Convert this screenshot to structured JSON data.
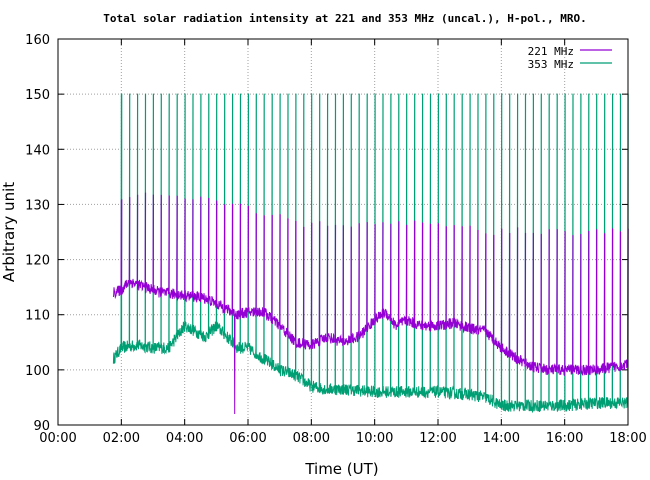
{
  "chart_data": {
    "type": "line",
    "title": "Total solar radiation intensity at 221 and 353 MHz (uncal.), H-pol., MRO.",
    "xlabel": "Time (UT)",
    "ylabel": "Arbitrary unit",
    "xlim": [
      "00:00",
      "18:00"
    ],
    "ylim": [
      90,
      160
    ],
    "x_ticks": [
      "00:00",
      "02:00",
      "04:00",
      "06:00",
      "08:00",
      "10:00",
      "12:00",
      "14:00",
      "16:00",
      "18:00"
    ],
    "y_ticks": [
      "90",
      "100",
      "110",
      "120",
      "130",
      "140",
      "150",
      "160"
    ],
    "grid": true,
    "legend_position": "top-right",
    "series": [
      {
        "name": "221 MHz",
        "color": "#9400d3",
        "baseline": [
          {
            "x": "01:45",
            "y": 114
          },
          {
            "x": "02:00",
            "y": 114.5
          },
          {
            "x": "02:15",
            "y": 116
          },
          {
            "x": "02:45",
            "y": 115
          },
          {
            "x": "03:15",
            "y": 114
          },
          {
            "x": "04:00",
            "y": 113.5
          },
          {
            "x": "04:40",
            "y": 113
          },
          {
            "x": "05:00",
            "y": 112
          },
          {
            "x": "05:20",
            "y": 111
          },
          {
            "x": "05:40",
            "y": 110
          },
          {
            "x": "06:00",
            "y": 110.5
          },
          {
            "x": "06:30",
            "y": 110.5
          },
          {
            "x": "07:00",
            "y": 108
          },
          {
            "x": "07:30",
            "y": 105
          },
          {
            "x": "08:00",
            "y": 104.5
          },
          {
            "x": "08:30",
            "y": 106
          },
          {
            "x": "09:00",
            "y": 105
          },
          {
            "x": "09:30",
            "y": 106
          },
          {
            "x": "10:00",
            "y": 109
          },
          {
            "x": "10:20",
            "y": 110.5
          },
          {
            "x": "10:40",
            "y": 108
          },
          {
            "x": "11:00",
            "y": 109
          },
          {
            "x": "11:30",
            "y": 108
          },
          {
            "x": "12:00",
            "y": 108
          },
          {
            "x": "12:30",
            "y": 108.5
          },
          {
            "x": "13:00",
            "y": 107.5
          },
          {
            "x": "13:30",
            "y": 107
          },
          {
            "x": "14:00",
            "y": 104
          },
          {
            "x": "14:30",
            "y": 102
          },
          {
            "x": "15:00",
            "y": 100.5
          },
          {
            "x": "15:30",
            "y": 100
          },
          {
            "x": "16:00",
            "y": 100
          },
          {
            "x": "17:00",
            "y": 100
          },
          {
            "x": "17:30",
            "y": 100.5
          },
          {
            "x": "18:00",
            "y": 101
          }
        ],
        "spike_peaks": [
          {
            "x": "01:45",
            "y": 131
          },
          {
            "x": "03:00",
            "y": 132
          },
          {
            "x": "05:00",
            "y": 131
          },
          {
            "x": "06:00",
            "y": 129
          },
          {
            "x": "08:00",
            "y": 126
          },
          {
            "x": "10:00",
            "y": 127
          },
          {
            "x": "12:00",
            "y": 126
          },
          {
            "x": "14:00",
            "y": 125
          },
          {
            "x": "16:00",
            "y": 125
          },
          {
            "x": "18:00",
            "y": 125
          }
        ]
      },
      {
        "name": "353 MHz",
        "color": "#009e73",
        "baseline": [
          {
            "x": "01:45",
            "y": 102
          },
          {
            "x": "02:00",
            "y": 104
          },
          {
            "x": "02:30",
            "y": 104.5
          },
          {
            "x": "03:00",
            "y": 104
          },
          {
            "x": "03:30",
            "y": 104
          },
          {
            "x": "03:45",
            "y": 106
          },
          {
            "x": "04:00",
            "y": 108
          },
          {
            "x": "04:20",
            "y": 107
          },
          {
            "x": "04:40",
            "y": 106
          },
          {
            "x": "05:00",
            "y": 108
          },
          {
            "x": "05:20",
            "y": 106
          },
          {
            "x": "05:40",
            "y": 104
          },
          {
            "x": "06:00",
            "y": 104
          },
          {
            "x": "06:30",
            "y": 102
          },
          {
            "x": "07:00",
            "y": 100
          },
          {
            "x": "07:30",
            "y": 99
          },
          {
            "x": "08:00",
            "y": 97
          },
          {
            "x": "08:30",
            "y": 96.5
          },
          {
            "x": "09:00",
            "y": 96.5
          },
          {
            "x": "10:00",
            "y": 96
          },
          {
            "x": "11:00",
            "y": 96
          },
          {
            "x": "12:00",
            "y": 96
          },
          {
            "x": "13:00",
            "y": 95.5
          },
          {
            "x": "13:30",
            "y": 95
          },
          {
            "x": "14:00",
            "y": 93.5
          },
          {
            "x": "15:00",
            "y": 93.5
          },
          {
            "x": "16:00",
            "y": 93.5
          },
          {
            "x": "17:00",
            "y": 94
          },
          {
            "x": "18:00",
            "y": 94
          }
        ],
        "spike_peak": 150
      }
    ],
    "notable_features": [
      {
        "series": "221 MHz",
        "x": "05:35",
        "y": 92
      }
    ]
  }
}
